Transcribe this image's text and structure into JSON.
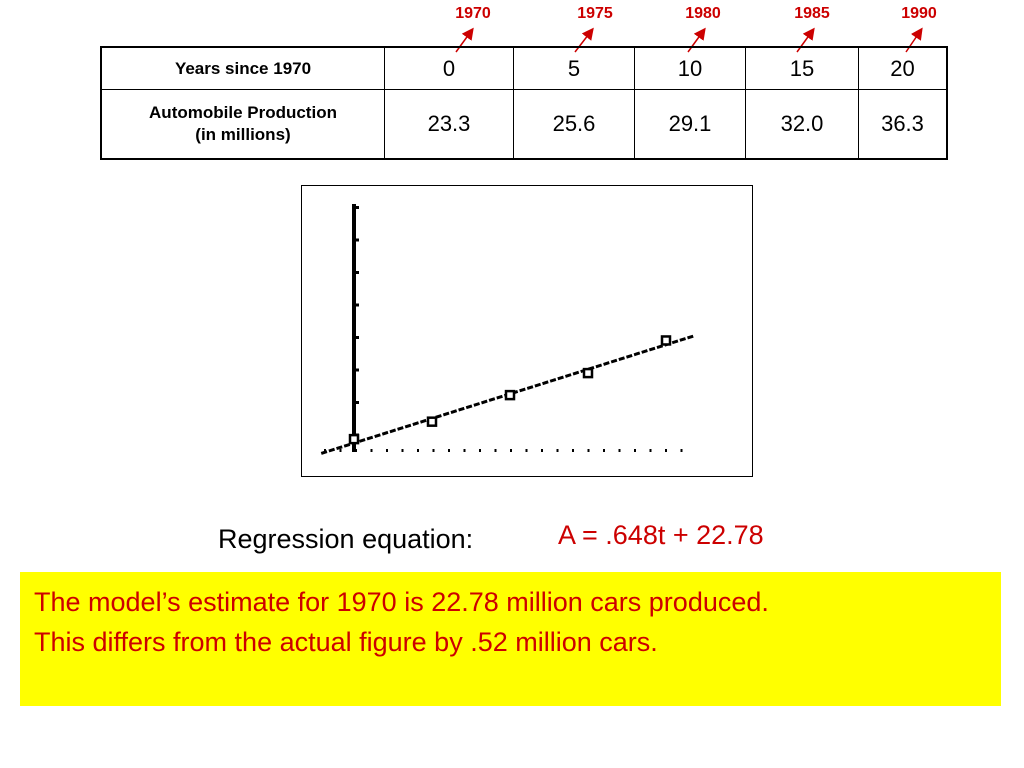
{
  "years": [
    "1970",
    "1975",
    "1980",
    "1985",
    "1990"
  ],
  "table": {
    "row1_header": "Years since 1970",
    "row1_values": [
      "0",
      "5",
      "10",
      "15",
      "20"
    ],
    "row2_header_line1": "Automobile Production",
    "row2_header_line2": "(in millions)",
    "row2_values": [
      "23.3",
      "25.6",
      "29.1",
      "32.0",
      "36.3"
    ]
  },
  "chart_data": {
    "type": "scatter",
    "x": [
      0,
      5,
      10,
      15,
      20
    ],
    "y": [
      23.3,
      25.6,
      29.1,
      32.0,
      36.3
    ],
    "regression": {
      "slope": 0.648,
      "intercept": 22.78
    },
    "title": "",
    "xlabel": "",
    "ylabel": "",
    "grid": false,
    "legend": "none"
  },
  "equation": {
    "label": "Regression equation:",
    "value": "A = .648t + 22.78"
  },
  "note": {
    "line1": "The model’s estimate for 1970 is 22.78 million cars produced.",
    "line2": "This differs from the actual figure by .52 million cars."
  },
  "colors": {
    "accent": "#cc0000",
    "highlight": "#ffff00"
  }
}
